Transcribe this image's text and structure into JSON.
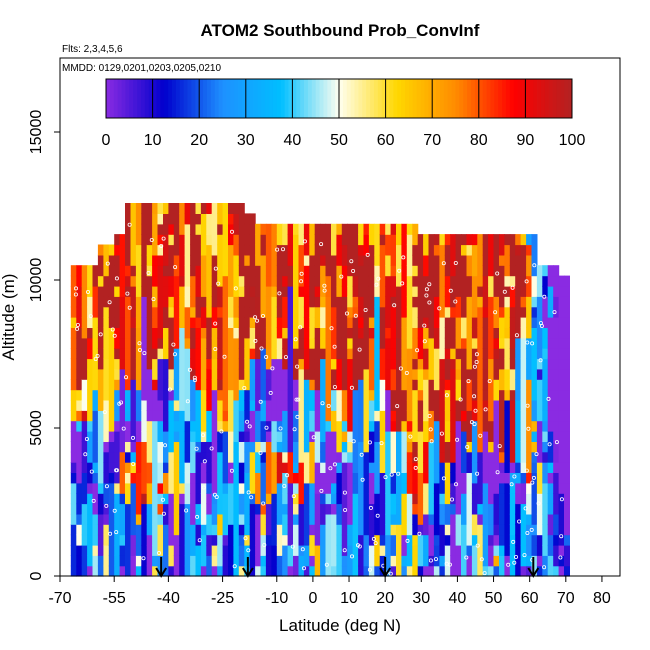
{
  "chart_data": {
    "type": "heatmap",
    "title": "ATOM2 Southbound Prob_ConvInf",
    "subtitle_flights": "Flts: 2,3,4,5,6",
    "subtitle_dates": "MMDD: 0129,0201,0203,0205,0210",
    "xlabel": "Latitude (deg N)",
    "ylabel": "Altitude (m)",
    "xlim": [
      -70,
      85
    ],
    "ylim": [
      0,
      17500
    ],
    "x_ticks": [
      "-70",
      "-55",
      "-40",
      "-25",
      "-10",
      "0",
      "10",
      "20",
      "30",
      "40",
      "50",
      "60",
      "70",
      "80"
    ],
    "x_tick_values": [
      -70,
      -55,
      -40,
      -25,
      -10,
      0,
      10,
      20,
      30,
      40,
      50,
      60,
      70,
      80
    ],
    "y_ticks": [
      "0",
      "5000",
      "10000",
      "15000"
    ],
    "y_tick_values": [
      0,
      5000,
      10000,
      15000
    ],
    "colorbar": {
      "min": 0,
      "max": 100,
      "ticks": [
        "0",
        "10",
        "20",
        "30",
        "40",
        "50",
        "60",
        "70",
        "80",
        "90",
        "100"
      ],
      "tick_values": [
        0,
        10,
        20,
        30,
        40,
        50,
        60,
        70,
        80,
        90,
        100
      ],
      "colors": [
        "#8a2be2",
        "#0000cd",
        "#1e90ff",
        "#00bfff",
        "#fffff0",
        "#ffd700",
        "#ff8c00",
        "#ff0000",
        "#b22222"
      ]
    },
    "profile_markers_lat": [
      -42,
      -18,
      20,
      61
    ],
    "grid": false,
    "data_note_cells": "probability field (0-100) by latitude and altitude"
  }
}
